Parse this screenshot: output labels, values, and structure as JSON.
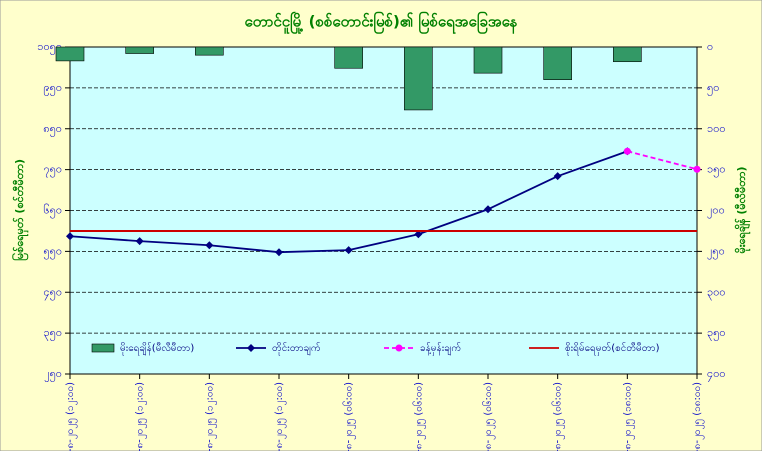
{
  "chart_data": {
    "type": "combo",
    "title": "တောင်ငူမြို့ (စစ်တောင်းမြစ်)၏ မြစ်ရေအခြေအနေ",
    "ylabel": "မြစ်ရေမှတ် (စင်တီမီတာ)",
    "y2label": "မိုးရေချိန် (မီလီမီတာ)",
    "categories": [
      "၆-၈-၂၀၂၅ (၁၂:၀၀)",
      "၇-၈-၂၀၂၅ (၁၂:၀၀)",
      "၈-၈-၂၀၂၅ (၁၂:၀၀)",
      "၉-၈-၂၀၂၅ (၁၂:၀၀)",
      "၁၀-၈-၂၀၂၅ (၀၆:၀၀)",
      "၁၁-၈-၂၀၂၅ (၀၆:၀၀)",
      "၁၂-၈-၂၀၂၅ (၀၆:၀၀)",
      "၁၃-၈-၂၀၂၅ (၀၆:၀၀)",
      "၁၄-၈-၂၀၂၅ (၁၈:၀၀)",
      "၁၅-၈-၂၀၂၅ (၁၈:၀၀)"
    ],
    "series": [
      {
        "name": "မိုးရေချိန်(မီလီမီတာ)",
        "kind": "bar",
        "axis": "y2",
        "color": "#339966",
        "values": [
          17,
          8,
          10,
          0,
          26,
          77,
          32,
          40,
          18,
          null
        ]
      },
      {
        "name": "တိုင်းတာချက်",
        "kind": "line",
        "color": "#000080",
        "marker": "diamond",
        "values": [
          587,
          575,
          565,
          548,
          553,
          592,
          653,
          734,
          795,
          null
        ]
      },
      {
        "name": "ခန့်မှန်းချက်",
        "kind": "line",
        "color": "#ff00ff",
        "dashed": true,
        "marker": "circle",
        "values": [
          null,
          null,
          null,
          null,
          null,
          null,
          null,
          null,
          795,
          751
        ]
      },
      {
        "name": "စိုးရိမ်ရေမှတ်(စင်တီမီတာ)",
        "kind": "hline",
        "color": "#cc0000",
        "value": 600
      }
    ],
    "ylim": [
      250,
      1050
    ],
    "yticks": [
      {
        "value": 250,
        "label": "၂၅၀"
      },
      {
        "value": 350,
        "label": "၃၅၀"
      },
      {
        "value": 450,
        "label": "၄၅၀"
      },
      {
        "value": 550,
        "label": "၅၅၀"
      },
      {
        "value": 650,
        "label": "၆၅၀"
      },
      {
        "value": 750,
        "label": "၇၅၀"
      },
      {
        "value": 850,
        "label": "၈၅၀"
      },
      {
        "value": 950,
        "label": "၉၅၀"
      },
      {
        "value": 1050,
        "label": "၁၀၅၀"
      }
    ],
    "y2lim": [
      0,
      400
    ],
    "y2_inverted": true,
    "y2ticks": [
      {
        "value": 0,
        "label": "၀"
      },
      {
        "value": 50,
        "label": "၅၀"
      },
      {
        "value": 100,
        "label": "၁၀၀"
      },
      {
        "value": 150,
        "label": "၁၅၀"
      },
      {
        "value": 200,
        "label": "၂၀၀"
      },
      {
        "value": 250,
        "label": "၂၅၀"
      },
      {
        "value": 300,
        "label": "၃၀၀"
      },
      {
        "value": 350,
        "label": "၃၅၀"
      },
      {
        "value": 400,
        "label": "၄၀၀"
      }
    ],
    "grid": true
  }
}
